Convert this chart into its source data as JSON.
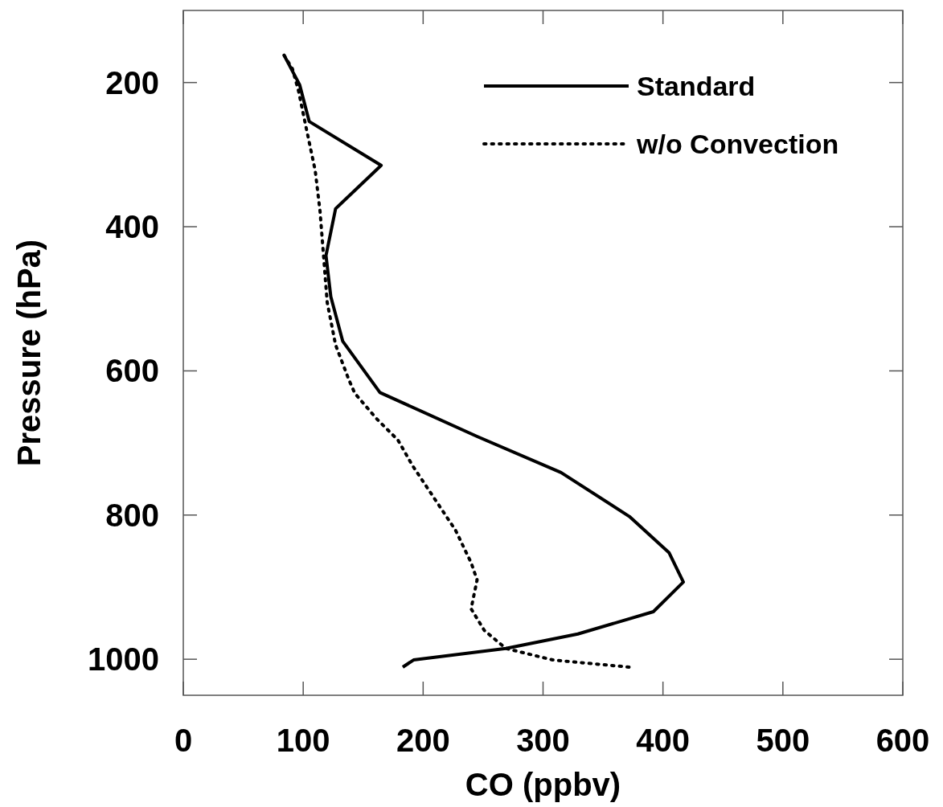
{
  "chart_data": {
    "type": "line",
    "xlabel": "CO (ppbv)",
    "ylabel": "Pressure (hPa)",
    "xlim": [
      0,
      600
    ],
    "xticks": [
      0,
      100,
      200,
      300,
      400,
      500,
      600
    ],
    "ylim": [
      1050,
      100
    ],
    "yticks": [
      200,
      400,
      600,
      800,
      1000
    ],
    "grid": false,
    "legend": "top right",
    "marker": "none",
    "series": [
      {
        "name": "Standard",
        "color": "#000000",
        "line_style": "solid",
        "x": [
          84,
          97,
          105,
          165,
          127,
          119,
          123,
          133,
          164,
          245,
          315,
          372,
          405,
          417,
          392,
          329,
          269,
          192,
          183
        ],
        "values": [
          162,
          203,
          254,
          315,
          375,
          440,
          497,
          559,
          630,
          691,
          741,
          802,
          852,
          893,
          934,
          965,
          985,
          1001,
          1011
        ]
      },
      {
        "name": "w/o Convection",
        "color": "#000000",
        "line_style": "dotted",
        "x": [
          84,
          91,
          96,
          103,
          110,
          114,
          117,
          120,
          127,
          138,
          143,
          161,
          179,
          191,
          209,
          227,
          240,
          245,
          240,
          251,
          269,
          308,
          372
        ],
        "values": [
          162,
          181,
          211,
          267,
          322,
          378,
          441,
          505,
          564,
          612,
          631,
          666,
          696,
          731,
          776,
          821,
          866,
          890,
          930,
          960,
          985,
          1001,
          1011
        ]
      }
    ]
  }
}
